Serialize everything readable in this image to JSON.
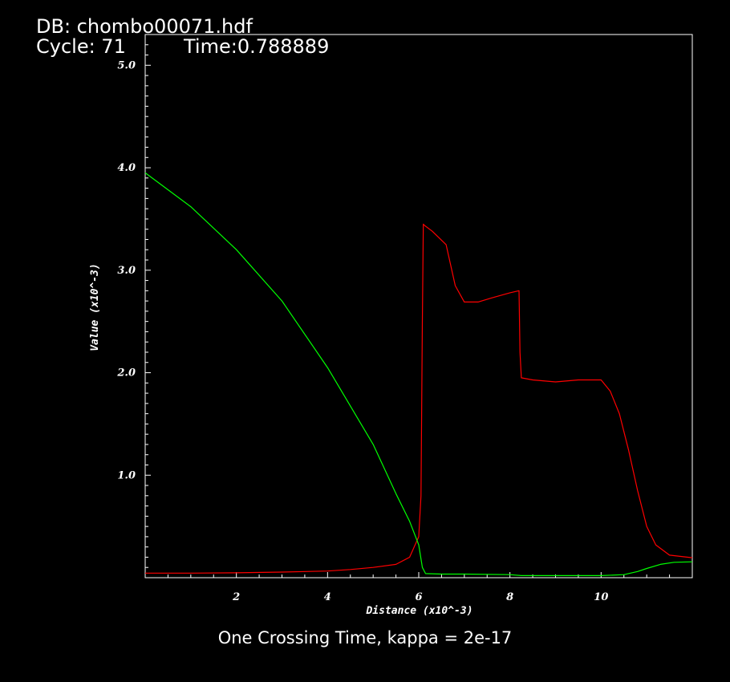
{
  "header": {
    "db_label": "DB: chombo00071.hdf",
    "cycle_label": "Cycle: 71",
    "time_label": "Time:0.788889"
  },
  "caption": "One Crossing Time, kappa = 2e-17",
  "colors": {
    "background": "#000000",
    "axes": "#ffffff",
    "red_series": "#ff0000",
    "green_series": "#00ff00"
  },
  "chart_data": {
    "type": "line",
    "xlabel": "Distance (x10^-3)",
    "ylabel": "Value (x10^-3)",
    "xlim": [
      0,
      12
    ],
    "ylim": [
      0.0,
      5.3
    ],
    "x_ticks": [
      2,
      4,
      6,
      8,
      10
    ],
    "x_tick_labels": [
      "2",
      "4",
      "6",
      "8",
      "10"
    ],
    "y_ticks": [
      1.0,
      2.0,
      3.0,
      4.0,
      5.0
    ],
    "y_tick_labels": [
      "1.0",
      "2.0",
      "3.0",
      "4.0",
      "5.0"
    ],
    "grid": false,
    "series": [
      {
        "color": "#ff0000",
        "x": [
          0,
          1,
          2,
          3,
          4,
          4.5,
          5,
          5.5,
          5.8,
          6.0,
          6.05,
          6.08,
          6.1,
          6.12,
          6.3,
          6.6,
          6.8,
          7.0,
          7.3,
          7.6,
          8.0,
          8.2,
          8.22,
          8.25,
          8.5,
          9.0,
          9.5,
          10.0,
          10.2,
          10.4,
          10.6,
          10.8,
          11.0,
          11.2,
          11.5,
          12.0
        ],
        "y": [
          0.045,
          0.045,
          0.048,
          0.055,
          0.065,
          0.08,
          0.1,
          0.13,
          0.2,
          0.4,
          0.8,
          2.5,
          3.45,
          3.44,
          3.38,
          3.25,
          2.85,
          2.69,
          2.69,
          2.73,
          2.78,
          2.8,
          2.2,
          1.95,
          1.93,
          1.91,
          1.93,
          1.93,
          1.82,
          1.6,
          1.25,
          0.85,
          0.5,
          0.32,
          0.22,
          0.195
        ]
      },
      {
        "color": "#00ff00",
        "x": [
          0,
          1,
          2,
          3,
          4,
          5,
          5.5,
          5.8,
          6.0,
          6.08,
          6.15,
          6.5,
          7.0,
          8.0,
          8.25,
          9.0,
          10.0,
          10.5,
          10.8,
          11.0,
          11.3,
          11.6,
          12.0
        ],
        "y": [
          3.95,
          3.62,
          3.2,
          2.7,
          2.05,
          1.3,
          0.82,
          0.55,
          0.32,
          0.1,
          0.04,
          0.035,
          0.035,
          0.03,
          0.02,
          0.02,
          0.02,
          0.03,
          0.06,
          0.09,
          0.13,
          0.15,
          0.155
        ]
      }
    ]
  }
}
